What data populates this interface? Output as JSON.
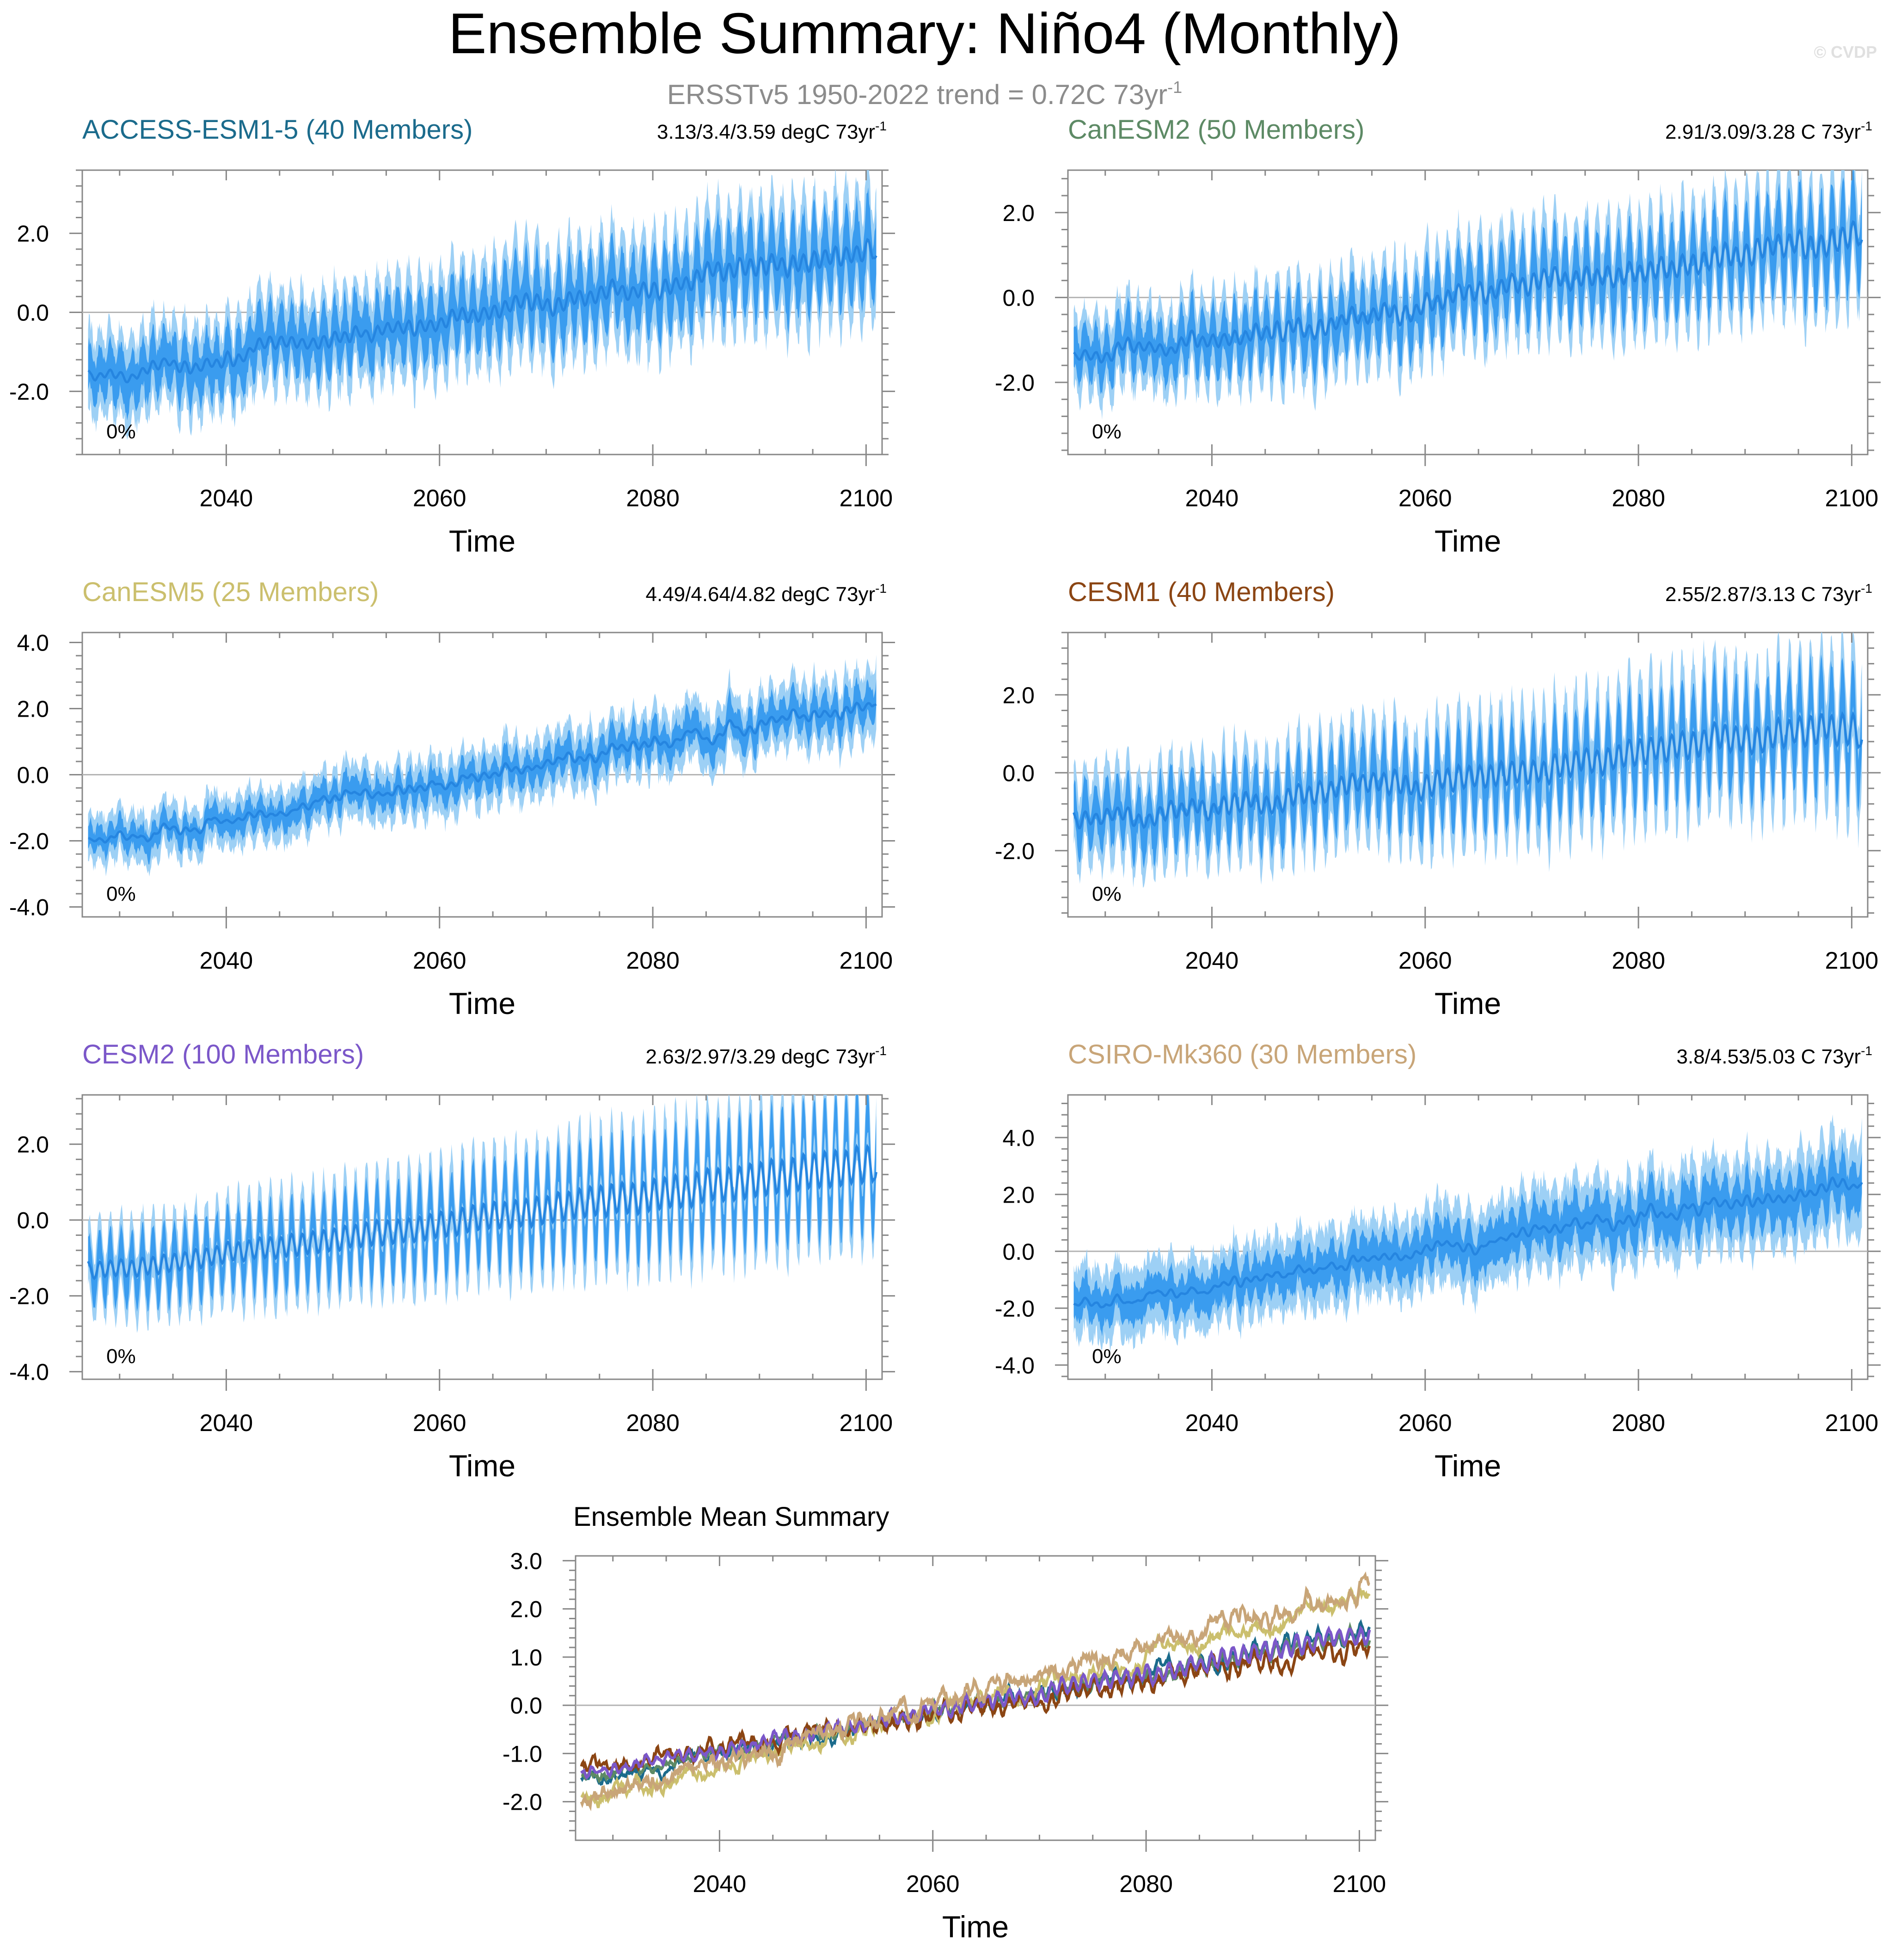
{
  "figure": {
    "title": "Ensemble Summary: Niño4 (Monthly)",
    "subtitle": "ERSSTv5 1950-2022 trend = 0.72C 73yr",
    "subtitle_sup": "-1",
    "copyright": "© CVDP"
  },
  "chart_data": [
    {
      "type": "area",
      "model": "ACCESS-ESM1-5",
      "title": "ACCESS-ESM1-5 (40 Members)",
      "title_color": "#1b6b8c",
      "trend_label": "3.13/3.4/3.59 degC 73yr",
      "trend_sup": "-1",
      "pct_label": "0%",
      "xlabel": "Time",
      "ylabel": "",
      "xlim": [
        2026.5,
        2101.5
      ],
      "ylim": [
        -3.6,
        3.6
      ],
      "xticks": [
        2040,
        2060,
        2080,
        2100
      ],
      "yticks": [
        -2.0,
        0.0,
        2.0
      ],
      "ytick_labels": [
        "-2.0",
        "0.0",
        "2.0"
      ],
      "series": {
        "start": 2027,
        "end": 2100,
        "mean_start": -1.7,
        "mean_end": 1.6,
        "seasonal_amp": 0.6,
        "noise": 0.25,
        "inner_half_width": 0.65,
        "outer_half_width": 1.2
      }
    },
    {
      "type": "area",
      "model": "CanESM2",
      "title": "CanESM2 (50 Members)",
      "title_color": "#5d8a65",
      "trend_label": "2.91/3.09/3.28 C 73yr",
      "trend_sup": "-1",
      "pct_label": "0%",
      "xlabel": "Time",
      "ylabel": "",
      "xlim": [
        2026.5,
        2101.5
      ],
      "ylim": [
        -3.7,
        3.0
      ],
      "xticks": [
        2040,
        2060,
        2080,
        2100
      ],
      "yticks": [
        -2.0,
        0.0,
        2.0
      ],
      "ytick_labels": [
        "-2.0",
        "0.0",
        "2.0"
      ],
      "series": {
        "start": 2027,
        "end": 2100,
        "mean_start": -1.5,
        "mean_end": 1.5,
        "seasonal_amp": 0.7,
        "noise": 0.25,
        "inner_half_width": 0.55,
        "outer_half_width": 1.05
      }
    },
    {
      "type": "area",
      "model": "CanESM5",
      "title": "CanESM5 (25 Members)",
      "title_color": "#cbbf6d",
      "trend_label": "4.49/4.64/4.82 degC 73yr",
      "trend_sup": "-1",
      "pct_label": "0%",
      "xlabel": "Time",
      "ylabel": "",
      "xlim": [
        2026.5,
        2101.5
      ],
      "ylim": [
        -4.3,
        4.3
      ],
      "xticks": [
        2040,
        2060,
        2080,
        2100
      ],
      "yticks": [
        -4.0,
        -2.0,
        0.0,
        2.0,
        4.0
      ],
      "ytick_labels": [
        "-4.0",
        "-2.0",
        "0.0",
        "2.0",
        "4.0"
      ],
      "series": {
        "start": 2027,
        "end": 2100,
        "mean_start": -2.1,
        "mean_end": 2.1,
        "seasonal_amp": 0.3,
        "noise": 0.3,
        "inner_half_width": 0.4,
        "outer_half_width": 0.85
      }
    },
    {
      "type": "area",
      "model": "CESM1",
      "title": "CESM1 (40 Members)",
      "title_color": "#8b4513",
      "trend_label": "2.55/2.87/3.13 C 73yr",
      "trend_sup": "-1",
      "pct_label": "0%",
      "xlabel": "Time",
      "ylabel": "",
      "xlim": [
        2026.5,
        2101.5
      ],
      "ylim": [
        -3.7,
        3.6
      ],
      "xticks": [
        2040,
        2060,
        2080,
        2100
      ],
      "yticks": [
        -2.0,
        0.0,
        2.0
      ],
      "ytick_labels": [
        "-2.0",
        "0.0",
        "2.0"
      ],
      "series": {
        "start": 2027,
        "end": 2100,
        "mean_start": -1.3,
        "mean_end": 1.2,
        "seasonal_amp": 0.95,
        "noise": 0.3,
        "inner_half_width": 0.6,
        "outer_half_width": 1.2
      }
    },
    {
      "type": "area",
      "model": "CESM2",
      "title": "CESM2 (100 Members)",
      "title_color": "#7b57c9",
      "trend_label": "2.63/2.97/3.29 degC 73yr",
      "trend_sup": "-1",
      "pct_label": "0%",
      "xlabel": "Time",
      "ylabel": "",
      "xlim": [
        2026.5,
        2101.5
      ],
      "ylim": [
        -4.2,
        3.3
      ],
      "xticks": [
        2040,
        2060,
        2080,
        2100
      ],
      "yticks": [
        -4.0,
        -2.0,
        0.0,
        2.0
      ],
      "ytick_labels": [
        "-4.0",
        "-2.0",
        "0.0",
        "2.0"
      ],
      "series": {
        "start": 2027,
        "end": 2100,
        "mean_start": -1.4,
        "mean_end": 1.5,
        "seasonal_amp": 1.25,
        "noise": 0.1,
        "inner_half_width": 0.5,
        "outer_half_width": 1.0
      }
    },
    {
      "type": "area",
      "model": "CSIRO-Mk360",
      "title": "CSIRO-Mk360 (30 Members)",
      "title_color": "#c8a578",
      "trend_label": "3.8/4.53/5.03 C 73yr",
      "trend_sup": "-1",
      "pct_label": "0%",
      "xlabel": "Time",
      "ylabel": "",
      "xlim": [
        2026.5,
        2101.5
      ],
      "ylim": [
        -4.5,
        5.5
      ],
      "xticks": [
        2040,
        2060,
        2080,
        2100
      ],
      "yticks": [
        -4.0,
        -2.0,
        0.0,
        2.0,
        4.0
      ],
      "ytick_labels": [
        "-4.0",
        "-2.0",
        "0.0",
        "2.0",
        "4.0"
      ],
      "series": {
        "start": 2027,
        "end": 2100,
        "mean_start": -2.0,
        "mean_end": 2.5,
        "seasonal_amp": 0.35,
        "noise": 0.35,
        "inner_half_width": 0.7,
        "outer_half_width": 1.4
      }
    },
    {
      "type": "line",
      "title": "Ensemble Mean Summary",
      "xlabel": "Time",
      "ylabel": "",
      "xlim": [
        2026.5,
        2101.5
      ],
      "ylim": [
        -2.8,
        3.1
      ],
      "xticks": [
        2040,
        2060,
        2080,
        2100
      ],
      "yticks": [
        -2.0,
        -1.0,
        0.0,
        1.0,
        2.0,
        3.0
      ],
      "ytick_labels": [
        "-2.0",
        "-1.0",
        "0.0",
        "1.0",
        "2.0",
        "3.0"
      ],
      "series": [
        {
          "name": "ACCESS-ESM1-5",
          "color": "#1b6b8c",
          "mean_start": -1.6,
          "mean_end": 1.55,
          "seasonal_amp": 0.1,
          "noise": 0.13
        },
        {
          "name": "CanESM2",
          "color": "#5d8a65",
          "mean_start": -1.5,
          "mean_end": 1.5,
          "seasonal_amp": 0.1,
          "noise": 0.11
        },
        {
          "name": "CanESM5",
          "color": "#cbbf6d",
          "mean_start": -2.0,
          "mean_end": 2.2,
          "seasonal_amp": 0.05,
          "noise": 0.18
        },
        {
          "name": "CESM1",
          "color": "#8b4513",
          "mean_start": -1.3,
          "mean_end": 1.2,
          "seasonal_amp": 0.12,
          "noise": 0.15
        },
        {
          "name": "CESM2",
          "color": "#7b57c9",
          "mean_start": -1.45,
          "mean_end": 1.5,
          "seasonal_amp": 0.15,
          "noise": 0.08
        },
        {
          "name": "CSIRO-Mk360",
          "color": "#c8a578",
          "mean_start": -2.0,
          "mean_end": 2.5,
          "seasonal_amp": 0.08,
          "noise": 0.22
        }
      ]
    }
  ]
}
